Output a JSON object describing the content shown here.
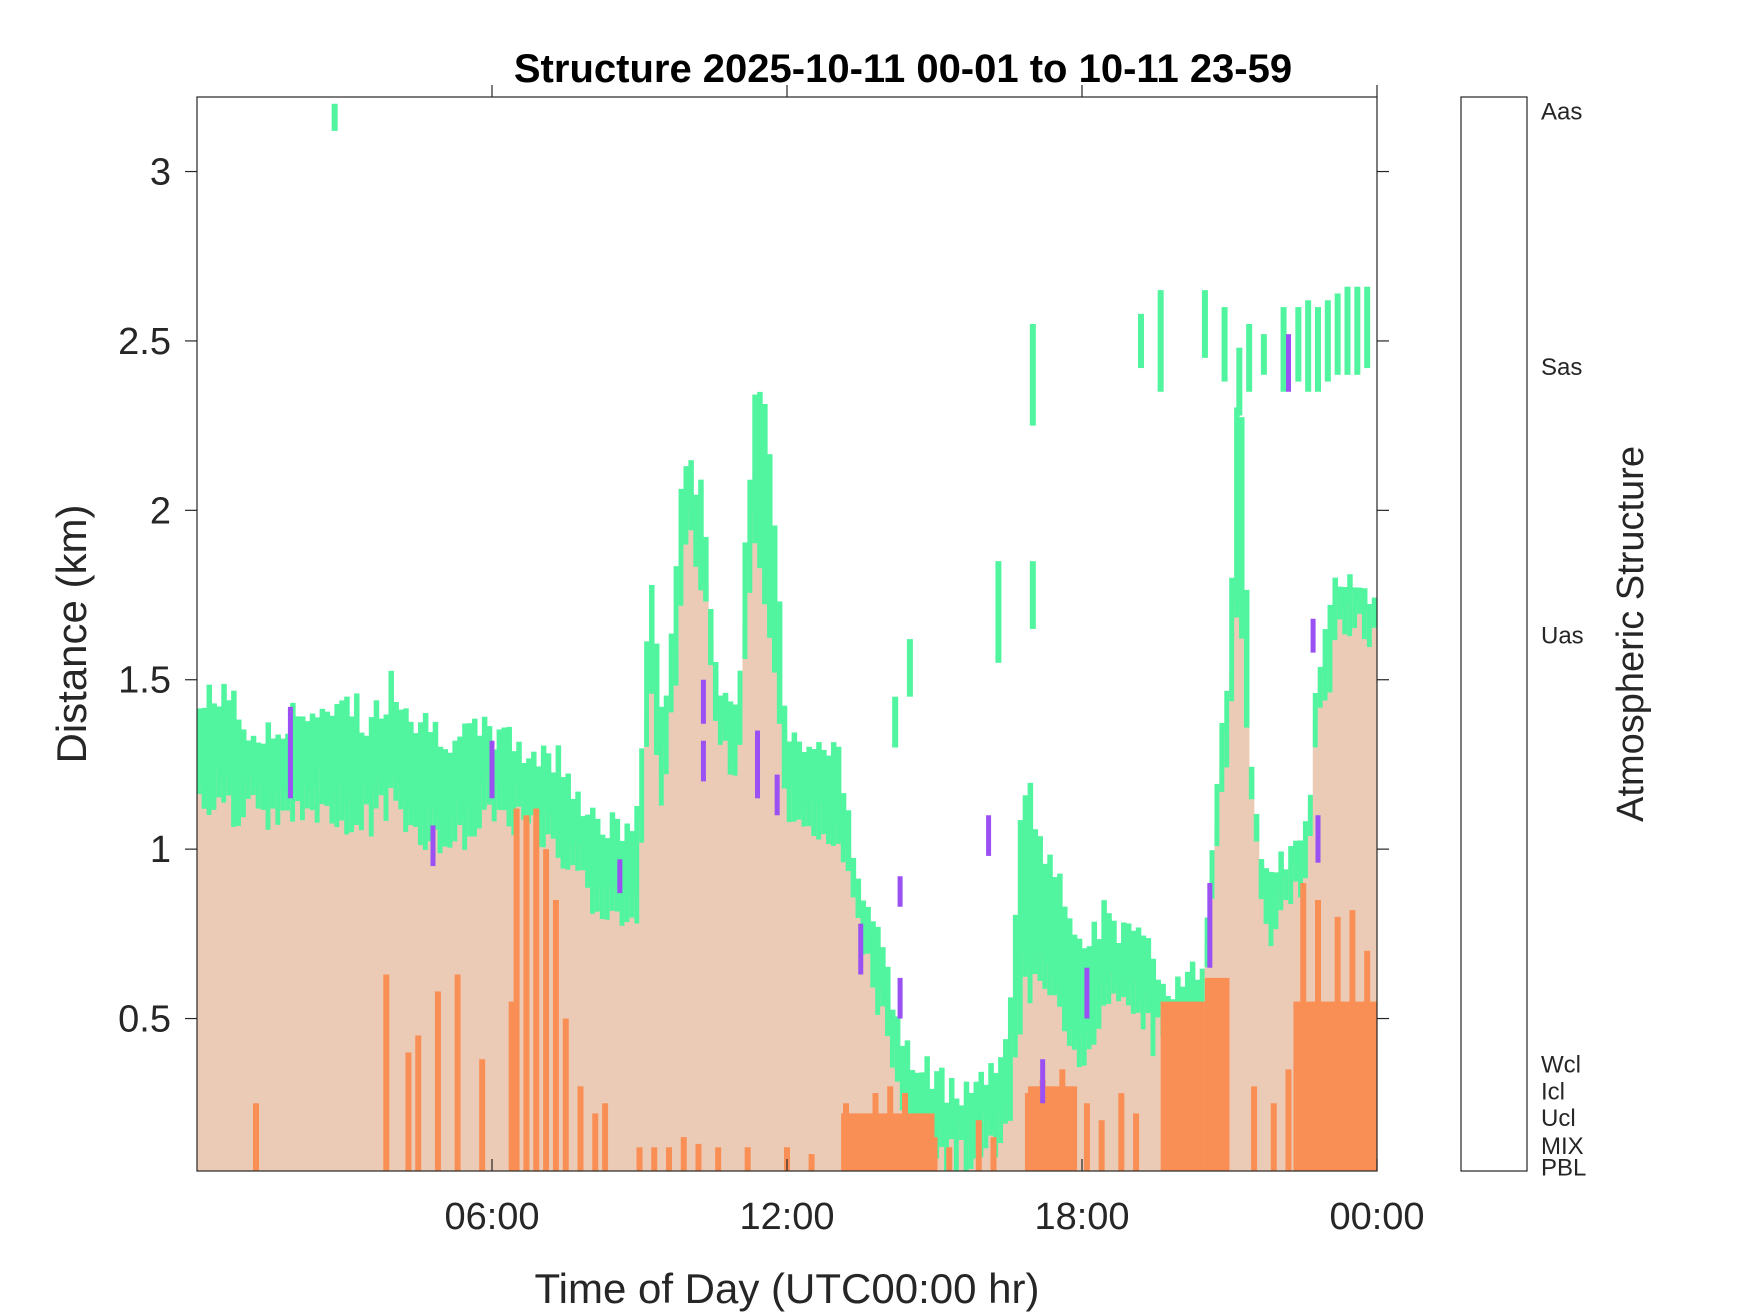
{
  "chart_data": {
    "type": "heatmap",
    "title": "Structure 2025-10-11 00-01 to 10-11 23-59",
    "xlabel": "Time of Day (UTC00:00 hr)",
    "ylabel": "Distance (km)",
    "xlim": [
      0,
      24
    ],
    "ylim": [
      0.05,
      3.22
    ],
    "x_ticks": [
      {
        "value": 6,
        "label": "06:00"
      },
      {
        "value": 12,
        "label": "12:00"
      },
      {
        "value": 18,
        "label": "18:00"
      },
      {
        "value": 24,
        "label": "00:00"
      }
    ],
    "y_ticks": [
      {
        "value": 0.5,
        "label": "0.5"
      },
      {
        "value": 1,
        "label": "1"
      },
      {
        "value": 1.5,
        "label": "1.5"
      },
      {
        "value": 2,
        "label": "2"
      },
      {
        "value": 2.5,
        "label": "2.5"
      },
      {
        "value": 3,
        "label": "3"
      }
    ],
    "colors": {
      "PBL": "#ebcbb6",
      "MIX": "#fa8f55",
      "Ucl": "#52f59f",
      "Uas": "#9a50f2",
      "Sas": "#f957e9"
    },
    "colorbar": {
      "label": "Atmospheric Structure",
      "categories": [
        {
          "name": "PBL",
          "color": "#ebcbb6"
        },
        {
          "name": "MIX",
          "color": "#fa8f55"
        },
        {
          "name": "Ucl",
          "color": "#52f59f"
        },
        {
          "name": "Icl",
          "color": "#50c4f5"
        },
        {
          "name": "Wcl",
          "color": "#4f7ff2"
        },
        {
          "name": "Uas",
          "color": "#9a50f2"
        },
        {
          "name": "Sas",
          "color": "#f957e9"
        },
        {
          "name": "Aas",
          "color": "#8b99ea"
        }
      ]
    },
    "pbl_top": [
      [
        0,
        1.22
      ],
      [
        0.5,
        1.22
      ],
      [
        1,
        1.2
      ],
      [
        1.5,
        1.15
      ],
      [
        2,
        1.18
      ],
      [
        2.5,
        1.2
      ],
      [
        3,
        1.17
      ],
      [
        3.5,
        1.15
      ],
      [
        4,
        1.22
      ],
      [
        4.5,
        1.12
      ],
      [
        5,
        1.1
      ],
      [
        5.5,
        1.12
      ],
      [
        6,
        1.2
      ],
      [
        6.5,
        1.15
      ],
      [
        7,
        1.1
      ],
      [
        7.5,
        1.05
      ],
      [
        8,
        0.95
      ],
      [
        8.5,
        0.85
      ],
      [
        9,
        0.9
      ],
      [
        9.2,
        1.55
      ],
      [
        9.5,
        1.2
      ],
      [
        9.8,
        1.7
      ],
      [
        10,
        2.0
      ],
      [
        10.3,
        1.85
      ],
      [
        10.6,
        1.4
      ],
      [
        11,
        1.3
      ],
      [
        11.3,
        2.0
      ],
      [
        11.6,
        1.75
      ],
      [
        12,
        1.2
      ],
      [
        12.5,
        1.15
      ],
      [
        13,
        1.1
      ],
      [
        13.3,
        0.95
      ],
      [
        13.6,
        0.75
      ],
      [
        14,
        0.55
      ],
      [
        14.3,
        0.35
      ],
      [
        14.6,
        0.25
      ],
      [
        15,
        0.2
      ],
      [
        15.5,
        0.15
      ],
      [
        16,
        0.18
      ],
      [
        16.5,
        0.22
      ],
      [
        16.8,
        0.65
      ],
      [
        17.2,
        0.7
      ],
      [
        17.6,
        0.55
      ],
      [
        18,
        0.45
      ],
      [
        18.5,
        0.6
      ],
      [
        19,
        0.62
      ],
      [
        19.5,
        0.52
      ],
      [
        20,
        0.5
      ],
      [
        20.5,
        0.6
      ],
      [
        20.8,
        1.2
      ],
      [
        21,
        1.45
      ],
      [
        21.2,
        1.8
      ],
      [
        21.5,
        1.1
      ],
      [
        21.8,
        0.8
      ],
      [
        22,
        0.85
      ],
      [
        22.3,
        0.95
      ],
      [
        22.6,
        1.0
      ],
      [
        22.8,
        1.5
      ],
      [
        23,
        1.55
      ],
      [
        23.2,
        1.75
      ],
      [
        23.5,
        1.72
      ],
      [
        24,
        1.7
      ]
    ],
    "ucl_top": [
      [
        0,
        1.4
      ],
      [
        0.5,
        1.48
      ],
      [
        1,
        1.35
      ],
      [
        1.5,
        1.32
      ],
      [
        2,
        1.42
      ],
      [
        2.5,
        1.35
      ],
      [
        3,
        1.48
      ],
      [
        3.5,
        1.35
      ],
      [
        4,
        1.5
      ],
      [
        4.5,
        1.38
      ],
      [
        5,
        1.35
      ],
      [
        5.5,
        1.32
      ],
      [
        6,
        1.35
      ],
      [
        6.5,
        1.3
      ],
      [
        7,
        1.28
      ],
      [
        7.5,
        1.25
      ],
      [
        8,
        1.1
      ],
      [
        8.5,
        1.05
      ],
      [
        9,
        1.08
      ],
      [
        9.2,
        1.85
      ],
      [
        9.5,
        1.35
      ],
      [
        9.8,
        1.95
      ],
      [
        10,
        2.2
      ],
      [
        10.3,
        2.0
      ],
      [
        10.6,
        1.5
      ],
      [
        11,
        1.4
      ],
      [
        11.3,
        2.3
      ],
      [
        11.6,
        2.3
      ],
      [
        12,
        1.35
      ],
      [
        12.5,
        1.32
      ],
      [
        13,
        1.3
      ],
      [
        13.3,
        1.05
      ],
      [
        13.6,
        0.88
      ],
      [
        14,
        0.65
      ],
      [
        14.3,
        0.45
      ],
      [
        14.6,
        0.35
      ],
      [
        15,
        0.32
      ],
      [
        15.5,
        0.3
      ],
      [
        16,
        0.32
      ],
      [
        16.5,
        0.4
      ],
      [
        16.8,
        1.25
      ],
      [
        17.2,
        1.0
      ],
      [
        17.6,
        0.85
      ],
      [
        18,
        0.75
      ],
      [
        18.5,
        0.8
      ],
      [
        19,
        0.75
      ],
      [
        19.5,
        0.65
      ],
      [
        20,
        0.58
      ],
      [
        20.5,
        0.68
      ],
      [
        20.8,
        1.35
      ],
      [
        21,
        1.55
      ],
      [
        21.2,
        2.6
      ],
      [
        21.5,
        0.95
      ],
      [
        21.8,
        0.9
      ],
      [
        22,
        0.92
      ],
      [
        22.3,
        1.05
      ],
      [
        22.6,
        1.05
      ],
      [
        22.8,
        1.55
      ],
      [
        23,
        1.65
      ],
      [
        23.2,
        1.8
      ],
      [
        23.5,
        1.75
      ],
      [
        24,
        1.72
      ]
    ],
    "mix_tops": [
      [
        1.2,
        0.25
      ],
      [
        3.85,
        0.63
      ],
      [
        4.3,
        0.4
      ],
      [
        4.5,
        0.45
      ],
      [
        4.9,
        0.58
      ],
      [
        5.3,
        0.63
      ],
      [
        5.8,
        0.38
      ],
      [
        6.4,
        0.55
      ],
      [
        6.5,
        1.12
      ],
      [
        6.7,
        1.1
      ],
      [
        6.9,
        1.12
      ],
      [
        7.1,
        1.0
      ],
      [
        7.3,
        0.85
      ],
      [
        7.5,
        0.5
      ],
      [
        7.8,
        0.3
      ],
      [
        8.1,
        0.22
      ],
      [
        8.3,
        0.25
      ],
      [
        9.0,
        0.12
      ],
      [
        9.3,
        0.12
      ],
      [
        9.6,
        0.12
      ],
      [
        9.9,
        0.15
      ],
      [
        10.2,
        0.13
      ],
      [
        10.6,
        0.12
      ],
      [
        11.2,
        0.12
      ],
      [
        12.0,
        0.12
      ],
      [
        12.5,
        0.1
      ],
      [
        13.2,
        0.25
      ],
      [
        13.5,
        0.22
      ],
      [
        13.8,
        0.28
      ],
      [
        14.1,
        0.3
      ],
      [
        14.4,
        0.28
      ],
      [
        14.7,
        0.22
      ],
      [
        15.0,
        0.15
      ],
      [
        15.3,
        0.12
      ],
      [
        15.9,
        0.2
      ],
      [
        16.2,
        0.15
      ],
      [
        16.9,
        0.28
      ],
      [
        17.2,
        0.32
      ],
      [
        17.6,
        0.35
      ],
      [
        18.1,
        0.25
      ],
      [
        18.4,
        0.2
      ],
      [
        18.8,
        0.28
      ],
      [
        19.1,
        0.22
      ],
      [
        19.7,
        0.45
      ],
      [
        21.5,
        0.3
      ],
      [
        21.9,
        0.25
      ],
      [
        22.2,
        0.35
      ],
      [
        22.5,
        0.9
      ],
      [
        22.8,
        0.85
      ],
      [
        23.2,
        0.8
      ],
      [
        23.5,
        0.82
      ],
      [
        23.8,
        0.7
      ]
    ],
    "mix_blocks": [
      [
        13.1,
        15.0,
        0.22
      ],
      [
        16.9,
        17.9,
        0.3
      ],
      [
        19.6,
        20.5,
        0.55
      ],
      [
        20.5,
        21.0,
        0.62
      ],
      [
        22.3,
        24.0,
        0.55
      ]
    ],
    "ucl_segments": [
      [
        2.8,
        3.12,
        3.2
      ],
      [
        17.0,
        2.25,
        2.55
      ],
      [
        17.0,
        1.65,
        1.85
      ],
      [
        16.3,
        1.55,
        1.85
      ],
      [
        14.5,
        1.45,
        1.62
      ],
      [
        14.2,
        1.3,
        1.45
      ],
      [
        19.2,
        2.42,
        2.58
      ],
      [
        19.6,
        2.35,
        2.65
      ],
      [
        20.5,
        2.45,
        2.65
      ],
      [
        20.9,
        2.38,
        2.6
      ],
      [
        21.2,
        2.28,
        2.48
      ],
      [
        21.4,
        2.35,
        2.55
      ],
      [
        21.7,
        2.4,
        2.52
      ],
      [
        22.1,
        2.35,
        2.6
      ],
      [
        22.4,
        2.38,
        2.6
      ],
      [
        22.6,
        2.35,
        2.62
      ],
      [
        22.8,
        2.35,
        2.6
      ],
      [
        23.0,
        2.38,
        2.62
      ],
      [
        23.2,
        2.4,
        2.64
      ],
      [
        23.4,
        2.4,
        2.66
      ],
      [
        23.6,
        2.4,
        2.66
      ],
      [
        23.8,
        2.42,
        2.66
      ]
    ],
    "uas_segments": [
      [
        1.9,
        1.15,
        1.42
      ],
      [
        6.0,
        1.15,
        1.32
      ],
      [
        4.8,
        0.95,
        1.07
      ],
      [
        8.6,
        0.87,
        0.97
      ],
      [
        10.3,
        1.37,
        1.5
      ],
      [
        10.3,
        1.2,
        1.32
      ],
      [
        11.4,
        1.15,
        1.35
      ],
      [
        11.8,
        1.1,
        1.22
      ],
      [
        13.5,
        0.63,
        0.78
      ],
      [
        14.3,
        0.5,
        0.62
      ],
      [
        14.3,
        0.83,
        0.92
      ],
      [
        16.1,
        0.98,
        1.1
      ],
      [
        17.2,
        0.25,
        0.38
      ],
      [
        18.1,
        0.5,
        0.65
      ],
      [
        20.6,
        0.65,
        0.9
      ],
      [
        22.2,
        2.35,
        2.52
      ],
      [
        22.7,
        1.58,
        1.68
      ],
      [
        22.8,
        0.96,
        1.1
      ]
    ]
  }
}
